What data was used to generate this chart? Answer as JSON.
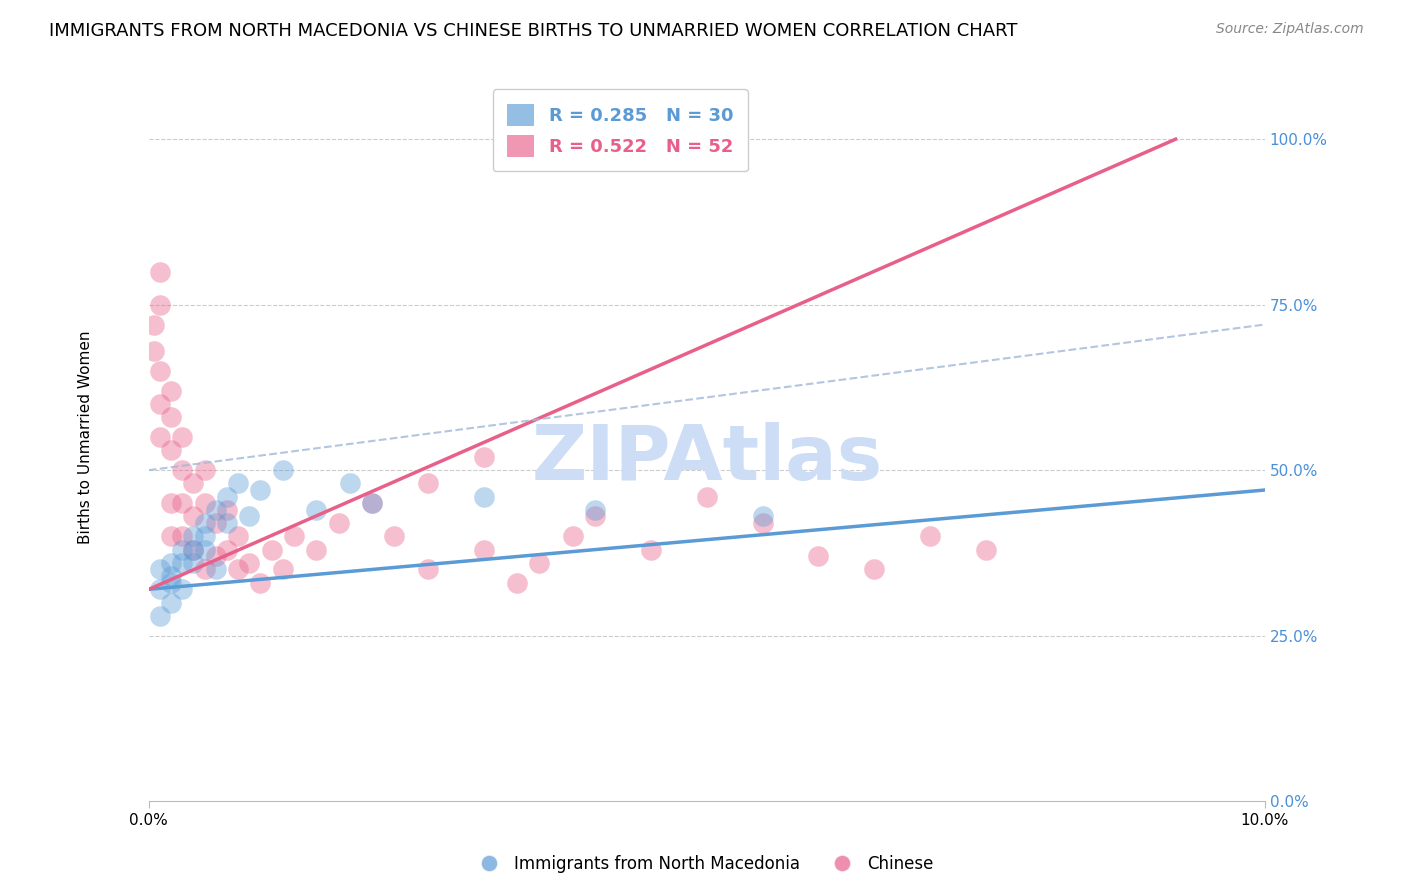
{
  "title": "IMMIGRANTS FROM NORTH MACEDONIA VS CHINESE BIRTHS TO UNMARRIED WOMEN CORRELATION CHART",
  "source": "Source: ZipAtlas.com",
  "ylabel": "Births to Unmarried Women",
  "xlim": [
    0.0,
    0.1
  ],
  "ylim": [
    0.0,
    1.1
  ],
  "yticks": [
    0.0,
    0.25,
    0.5,
    0.75,
    1.0
  ],
  "ytick_labels": [
    "0.0%",
    "25.0%",
    "50.0%",
    "75.0%",
    "100.0%"
  ],
  "legend_entries": [
    {
      "label": "R = 0.285   N = 30",
      "color": "#5b9bd5"
    },
    {
      "label": "R = 0.522   N = 52",
      "color": "#e8608a"
    }
  ],
  "watermark": "ZIPAtlas",
  "watermark_color": "#ccddf5",
  "blue_color": "#5b9bd5",
  "pink_color": "#e8608a",
  "blue_scatter_x": [
    0.001,
    0.001,
    0.001,
    0.002,
    0.002,
    0.002,
    0.002,
    0.003,
    0.003,
    0.003,
    0.004,
    0.004,
    0.004,
    0.005,
    0.005,
    0.005,
    0.006,
    0.006,
    0.007,
    0.007,
    0.008,
    0.009,
    0.01,
    0.012,
    0.015,
    0.018,
    0.02,
    0.03,
    0.04,
    0.055
  ],
  "blue_scatter_y": [
    0.32,
    0.28,
    0.35,
    0.33,
    0.3,
    0.36,
    0.34,
    0.38,
    0.36,
    0.32,
    0.4,
    0.38,
    0.36,
    0.42,
    0.4,
    0.38,
    0.44,
    0.35,
    0.46,
    0.42,
    0.48,
    0.43,
    0.47,
    0.5,
    0.44,
    0.48,
    0.45,
    0.46,
    0.44,
    0.43
  ],
  "pink_scatter_x": [
    0.0005,
    0.0005,
    0.001,
    0.001,
    0.001,
    0.001,
    0.001,
    0.002,
    0.002,
    0.002,
    0.002,
    0.002,
    0.003,
    0.003,
    0.003,
    0.003,
    0.004,
    0.004,
    0.004,
    0.005,
    0.005,
    0.005,
    0.006,
    0.006,
    0.007,
    0.007,
    0.008,
    0.008,
    0.009,
    0.01,
    0.011,
    0.012,
    0.013,
    0.015,
    0.017,
    0.02,
    0.022,
    0.025,
    0.03,
    0.033,
    0.035,
    0.038,
    0.04,
    0.045,
    0.05,
    0.055,
    0.06,
    0.065,
    0.07,
    0.075,
    0.025,
    0.03
  ],
  "pink_scatter_y": [
    0.72,
    0.68,
    0.8,
    0.75,
    0.65,
    0.6,
    0.55,
    0.62,
    0.58,
    0.53,
    0.45,
    0.4,
    0.55,
    0.5,
    0.45,
    0.4,
    0.48,
    0.43,
    0.38,
    0.5,
    0.45,
    0.35,
    0.42,
    0.37,
    0.44,
    0.38,
    0.4,
    0.35,
    0.36,
    0.33,
    0.38,
    0.35,
    0.4,
    0.38,
    0.42,
    0.45,
    0.4,
    0.35,
    0.38,
    0.33,
    0.36,
    0.4,
    0.43,
    0.38,
    0.46,
    0.42,
    0.37,
    0.35,
    0.4,
    0.38,
    0.48,
    0.52
  ],
  "blue_line": [
    0.0,
    0.1,
    0.32,
    0.47
  ],
  "pink_line": [
    0.0,
    0.092,
    0.32,
    1.0
  ],
  "dash_line": [
    0.0,
    0.1,
    0.5,
    0.72
  ],
  "grid_color": "#cccccc",
  "title_fontsize": 13,
  "label_fontsize": 11
}
